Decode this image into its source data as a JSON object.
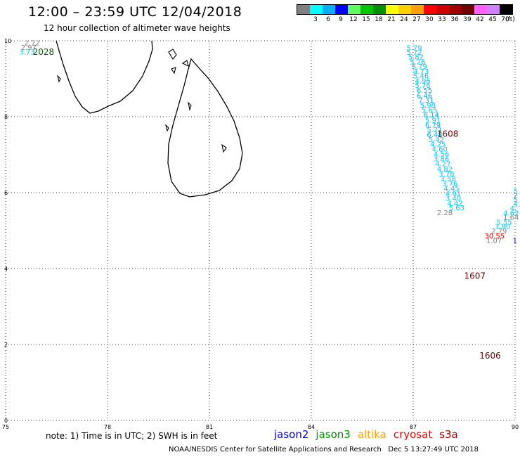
{
  "header": {
    "title": "12:00 – 23:59 UTC 12/04/2018",
    "subtitle": "12 hour collection of altimeter wave heights"
  },
  "color_scale": {
    "unit_label": "(ft)",
    "levels": [
      {
        "label": "",
        "color": "#808080"
      },
      {
        "label": "3",
        "color": "#00ffff"
      },
      {
        "label": "6",
        "color": "#00b0ff"
      },
      {
        "label": "9",
        "color": "#0000ff"
      },
      {
        "label": "12",
        "color": "#60ff60"
      },
      {
        "label": "15",
        "color": "#00c800"
      },
      {
        "label": "18",
        "color": "#009000"
      },
      {
        "label": "21",
        "color": "#ffff00"
      },
      {
        "label": "24",
        "color": "#ffd000"
      },
      {
        "label": "27",
        "color": "#ffa000"
      },
      {
        "label": "30",
        "color": "#ff0000"
      },
      {
        "label": "33",
        "color": "#d00000"
      },
      {
        "label": "36",
        "color": "#a00000"
      },
      {
        "label": "39",
        "color": "#700000"
      },
      {
        "label": "42",
        "color": "#ff60ff"
      },
      {
        "label": "45",
        "color": "#d080ff"
      },
      {
        "label": "70",
        "color": "#000000"
      }
    ]
  },
  "axes": {
    "x_ticks": [
      "75",
      "78",
      "81",
      "84",
      "87",
      "90"
    ],
    "y_ticks": [
      "0",
      "2",
      "4",
      "6",
      "8",
      "10"
    ],
    "x_range": [
      75,
      90
    ],
    "y_range": [
      0,
      10
    ]
  },
  "track_times": [
    {
      "label": "2028",
      "lon": 75.8,
      "lat": 9.63,
      "color": "#006400"
    },
    {
      "label": "1608",
      "lon": 87.7,
      "lat": 7.47,
      "color": "#700000"
    },
    {
      "label": "1607",
      "lon": 88.5,
      "lat": 3.73,
      "color": "#700000"
    },
    {
      "label": "1606",
      "lon": 88.95,
      "lat": 1.63,
      "color": "#700000"
    }
  ],
  "observations": [
    {
      "value": "2.72",
      "lon": 75.55,
      "lat": 9.88,
      "color": "#808080"
    },
    {
      "value": "2.97",
      "lon": 75.45,
      "lat": 9.76,
      "color": "#808080"
    },
    {
      "value": "3.73",
      "lon": 75.4,
      "lat": 9.64,
      "color": "#00c8ff"
    },
    {
      "value": "5.79",
      "lon": 86.8,
      "lat": 9.75,
      "color": "#00c8ff"
    },
    {
      "value": "5.72",
      "lon": 86.8,
      "lat": 9.63,
      "color": "#00c8ff"
    },
    {
      "value": "5.82",
      "lon": 86.85,
      "lat": 9.51,
      "color": "#00c8ff"
    },
    {
      "value": "5.26",
      "lon": 86.9,
      "lat": 9.38,
      "color": "#00c8ff"
    },
    {
      "value": "5.79",
      "lon": 86.95,
      "lat": 9.26,
      "color": "#00c8ff"
    },
    {
      "value": "4.73",
      "lon": 87.0,
      "lat": 9.13,
      "color": "#00c8ff"
    },
    {
      "value": "5.46",
      "lon": 87.0,
      "lat": 9.01,
      "color": "#00c8ff"
    },
    {
      "value": "4.96",
      "lon": 87.05,
      "lat": 8.88,
      "color": "#00c8ff"
    },
    {
      "value": "5.76",
      "lon": 87.05,
      "lat": 8.76,
      "color": "#00c8ff"
    },
    {
      "value": "6.55",
      "lon": 87.1,
      "lat": 8.63,
      "color": "#00b0ff"
    },
    {
      "value": "6.46",
      "lon": 87.1,
      "lat": 8.49,
      "color": "#00b0ff"
    },
    {
      "value": "7.31",
      "lon": 87.15,
      "lat": 8.37,
      "color": "#00b0ff"
    },
    {
      "value": "5.98",
      "lon": 87.2,
      "lat": 8.24,
      "color": "#00c8ff"
    },
    {
      "value": "5.65",
      "lon": 87.25,
      "lat": 8.11,
      "color": "#00c8ff"
    },
    {
      "value": "6.14",
      "lon": 87.3,
      "lat": 7.98,
      "color": "#00b0ff"
    },
    {
      "value": "5.91",
      "lon": 87.35,
      "lat": 7.84,
      "color": "#00c8ff"
    },
    {
      "value": "6.79",
      "lon": 87.35,
      "lat": 7.71,
      "color": "#00b0ff"
    },
    {
      "value": "5.21",
      "lon": 87.4,
      "lat": 7.59,
      "color": "#00c8ff"
    },
    {
      "value": "6.48",
      "lon": 87.4,
      "lat": 7.46,
      "color": "#00b0ff"
    },
    {
      "value": "5.42",
      "lon": 87.45,
      "lat": 7.33,
      "color": "#00c8ff"
    },
    {
      "value": "4.25",
      "lon": 87.5,
      "lat": 7.21,
      "color": "#00c8ff"
    },
    {
      "value": "4.60",
      "lon": 87.55,
      "lat": 7.08,
      "color": "#00c8ff"
    },
    {
      "value": "4.56",
      "lon": 87.6,
      "lat": 6.95,
      "color": "#00c8ff"
    },
    {
      "value": "3.86",
      "lon": 87.6,
      "lat": 6.82,
      "color": "#00c8ff"
    },
    {
      "value": "4.27",
      "lon": 87.65,
      "lat": 6.69,
      "color": "#00c8ff"
    },
    {
      "value": "4.82",
      "lon": 87.7,
      "lat": 6.56,
      "color": "#00c8ff"
    },
    {
      "value": "3.78",
      "lon": 87.75,
      "lat": 6.43,
      "color": "#00c8ff"
    },
    {
      "value": "3.58",
      "lon": 87.8,
      "lat": 6.31,
      "color": "#00c8ff"
    },
    {
      "value": "3.76",
      "lon": 87.85,
      "lat": 6.18,
      "color": "#00c8ff"
    },
    {
      "value": "4.45",
      "lon": 87.9,
      "lat": 6.05,
      "color": "#00c8ff"
    },
    {
      "value": "4.61",
      "lon": 87.95,
      "lat": 5.92,
      "color": "#00c8ff"
    },
    {
      "value": "3.40",
      "lon": 87.95,
      "lat": 5.79,
      "color": "#00c8ff"
    },
    {
      "value": "4.42",
      "lon": 88.0,
      "lat": 5.66,
      "color": "#00c8ff"
    },
    {
      "value": "5.63",
      "lon": 88.05,
      "lat": 5.54,
      "color": "#00c8ff"
    },
    {
      "value": "2.28",
      "lon": 87.7,
      "lat": 5.41,
      "color": "#808080"
    },
    {
      "value": "5.",
      "lon": 89.95,
      "lat": 5.97,
      "color": "#00c8ff"
    },
    {
      "value": "2",
      "lon": 89.95,
      "lat": 5.86,
      "color": "#808080"
    },
    {
      "value": "5.",
      "lon": 89.95,
      "lat": 5.75,
      "color": "#00c8ff"
    },
    {
      "value": "4.",
      "lon": 89.95,
      "lat": 5.63,
      "color": "#00c8ff"
    },
    {
      "value": "4.",
      "lon": 89.85,
      "lat": 5.52,
      "color": "#00c8ff"
    },
    {
      "value": "4.62",
      "lon": 89.65,
      "lat": 5.4,
      "color": "#00c8ff"
    },
    {
      "value": "1.64",
      "lon": 89.65,
      "lat": 5.29,
      "color": "#808080"
    },
    {
      "value": "5.55",
      "lon": 89.45,
      "lat": 5.16,
      "color": "#00c8ff"
    },
    {
      "value": "3.80",
      "lon": 89.4,
      "lat": 5.05,
      "color": "#00c8ff"
    },
    {
      "value": "2.79",
      "lon": 89.3,
      "lat": 4.93,
      "color": "#808080"
    },
    {
      "value": "30.55",
      "lon": 89.1,
      "lat": 4.8,
      "color": "#ff0000"
    },
    {
      "value": "1.07",
      "lon": 89.15,
      "lat": 4.68,
      "color": "#808080"
    },
    {
      "value": "1",
      "lon": 89.93,
      "lat": 4.68,
      "color": "#0000ff"
    }
  ],
  "bottom": {
    "note": "note:  1) Time is in UTC;  2) SWH is in feet",
    "satellites": [
      {
        "name": "jason2",
        "color": "#0000ff"
      },
      {
        "name": "jason3",
        "color": "#009000"
      },
      {
        "name": "altika",
        "color": "#ffa000"
      },
      {
        "name": "cryosat",
        "color": "#ff0000"
      },
      {
        "name": "s3a",
        "color": "#a00000"
      }
    ],
    "credit": "NOAA/NESDIS Center for Satellite Applications and Research",
    "timestamp": "Dec  5 13:27:49 UTC 2018"
  }
}
